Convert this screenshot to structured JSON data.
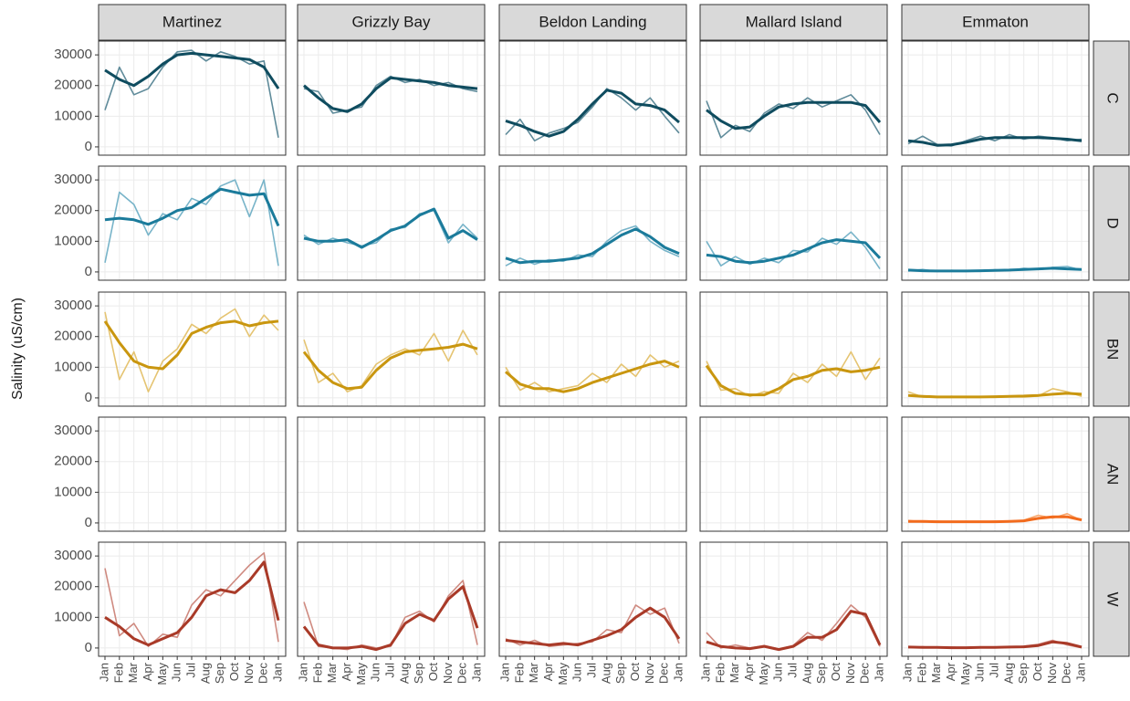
{
  "chart_data": {
    "type": "line",
    "ylabel": "Salinity (uS/cm)",
    "columns": [
      "Martinez",
      "Grizzly Bay",
      "Beldon Landing",
      "Mallard Island",
      "Emmaton"
    ],
    "rows": [
      "C",
      "D",
      "BN",
      "AN",
      "W"
    ],
    "categories": [
      "Jan",
      "Feb",
      "Mar",
      "Apr",
      "May",
      "Jun",
      "Jul",
      "Aug",
      "Sep",
      "Oct",
      "Nov",
      "Dec",
      "Jan"
    ],
    "ylim": [
      -2700,
      34500
    ],
    "yticks": [
      0,
      10000,
      20000,
      30000
    ],
    "grid": true,
    "panels": [
      [
        {
          "series": [
            {
              "color": "#5f8b9a",
              "values": [
                12000,
                26000,
                17000,
                19000,
                26000,
                31000,
                31500,
                28000,
                31000,
                29500,
                27000,
                28000,
                3000
              ]
            },
            {
              "color": "#0f4c5f",
              "values": [
                25000,
                22000,
                20000,
                23000,
                27000,
                30000,
                30500,
                30000,
                29500,
                29000,
                28500,
                26000,
                19000
              ]
            }
          ]
        },
        {
          "series": [
            {
              "color": "#5f8b9a",
              "values": [
                19000,
                18000,
                11000,
                12000,
                13000,
                20000,
                23000,
                21000,
                22000,
                20000,
                21000,
                19000,
                18000
              ]
            },
            {
              "color": "#0f4c5f",
              "values": [
                20000,
                16000,
                12500,
                11500,
                14000,
                19000,
                22500,
                22000,
                21500,
                21000,
                20000,
                19500,
                19000
              ]
            }
          ]
        },
        {
          "series": [
            {
              "color": "#5f8b9a",
              "values": [
                4000,
                9000,
                2000,
                4500,
                6000,
                8000,
                13000,
                19000,
                16000,
                12000,
                16000,
                10000,
                4500
              ]
            },
            {
              "color": "#0f4c5f",
              "values": [
                8500,
                7000,
                5000,
                3500,
                5000,
                9000,
                14000,
                18500,
                17500,
                14000,
                13500,
                12000,
                8000
              ]
            }
          ]
        },
        {
          "series": [
            {
              "color": "#5f8b9a",
              "values": [
                15000,
                3000,
                7000,
                5000,
                11000,
                14000,
                12500,
                16000,
                13000,
                15000,
                17000,
                12000,
                4000
              ]
            },
            {
              "color": "#0f4c5f",
              "values": [
                12000,
                8500,
                6000,
                6500,
                10000,
                13000,
                14000,
                14500,
                14500,
                14500,
                14500,
                13500,
                8000
              ]
            }
          ]
        },
        {
          "series": [
            {
              "color": "#5f8b9a",
              "values": [
                1000,
                3500,
                800,
                300,
                2000,
                3500,
                2000,
                4000,
                2500,
                3500,
                3000,
                2000,
                2500
              ]
            },
            {
              "color": "#0f4c5f",
              "values": [
                2000,
                1500,
                500,
                700,
                1500,
                2500,
                3000,
                3000,
                3000,
                3000,
                2800,
                2500,
                2000
              ]
            }
          ]
        }
      ],
      [
        {
          "series": [
            {
              "color": "#78b4c9",
              "values": [
                3000,
                26000,
                22000,
                12000,
                19000,
                17000,
                24000,
                22000,
                28000,
                30000,
                18000,
                30000,
                2000
              ]
            },
            {
              "color": "#1b7b9b",
              "values": [
                17000,
                17500,
                17000,
                15500,
                17500,
                20000,
                21000,
                24000,
                27000,
                26000,
                25000,
                25500,
                15000
              ]
            }
          ]
        },
        {
          "series": [
            {
              "color": "#78b4c9",
              "values": [
                12000,
                9000,
                11000,
                9500,
                8500,
                9500,
                14000,
                14500,
                19000,
                20000,
                9500,
                15500,
                11000
              ]
            },
            {
              "color": "#1b7b9b",
              "values": [
                11000,
                10000,
                10000,
                10500,
                8000,
                10500,
                13500,
                15000,
                18500,
                20500,
                11000,
                13500,
                10500
              ]
            }
          ]
        },
        {
          "series": [
            {
              "color": "#78b4c9",
              "values": [
                2000,
                4500,
                2500,
                4000,
                3500,
                5500,
                5000,
                10000,
                13500,
                15000,
                10000,
                7000,
                5000
              ]
            },
            {
              "color": "#1b7b9b",
              "values": [
                4500,
                3000,
                3500,
                3500,
                4000,
                4500,
                6000,
                9000,
                12000,
                14000,
                11500,
                8000,
                6000
              ]
            }
          ]
        },
        {
          "series": [
            {
              "color": "#78b4c9",
              "values": [
                10000,
                2000,
                5000,
                2500,
                4500,
                3000,
                7000,
                6500,
                11000,
                9000,
                13000,
                8000,
                1000
              ]
            },
            {
              "color": "#1b7b9b",
              "values": [
                5500,
                5000,
                3500,
                3000,
                3500,
                4500,
                5500,
                7500,
                9500,
                10500,
                10000,
                9500,
                4500
              ]
            }
          ]
        },
        {
          "series": [
            {
              "color": "#78b4c9",
              "values": [
                300,
                800,
                200,
                500,
                300,
                200,
                700,
                400,
                1200,
                800,
                1500,
                1800,
                600
              ]
            },
            {
              "color": "#1b7b9b",
              "values": [
                600,
                400,
                300,
                300,
                300,
                400,
                500,
                600,
                800,
                1000,
                1200,
                1000,
                800
              ]
            }
          ]
        }
      ],
      [
        {
          "series": [
            {
              "color": "#e5c472",
              "values": [
                28000,
                6000,
                15000,
                2000,
                12000,
                16000,
                24000,
                21000,
                26000,
                29000,
                20000,
                27000,
                22000
              ]
            },
            {
              "color": "#c9960f",
              "values": [
                25000,
                18000,
                12000,
                10000,
                9500,
                14000,
                21000,
                23000,
                24500,
                25000,
                23500,
                24500,
                25000
              ]
            }
          ]
        },
        {
          "series": [
            {
              "color": "#e5c472",
              "values": [
                19000,
                5000,
                8000,
                2000,
                4000,
                11000,
                14000,
                16000,
                14000,
                21000,
                12000,
                22000,
                14000
              ]
            },
            {
              "color": "#c9960f",
              "values": [
                15000,
                9000,
                5000,
                3000,
                3500,
                9000,
                13000,
                15000,
                15500,
                16000,
                16500,
                17500,
                16000
              ]
            }
          ]
        },
        {
          "series": [
            {
              "color": "#e5c472",
              "values": [
                10000,
                2500,
                5000,
                2000,
                3000,
                4000,
                8000,
                5000,
                11000,
                7000,
                14000,
                10000,
                12000
              ]
            },
            {
              "color": "#c9960f",
              "values": [
                8500,
                4500,
                3000,
                3000,
                2000,
                3000,
                5000,
                6500,
                8000,
                9500,
                11000,
                12000,
                10000
              ]
            }
          ]
        },
        {
          "series": [
            {
              "color": "#e5c472",
              "values": [
                12000,
                2500,
                3000,
                500,
                2000,
                1500,
                8000,
                5000,
                11000,
                7000,
                15000,
                6000,
                13000
              ]
            },
            {
              "color": "#c9960f",
              "values": [
                10500,
                4000,
                1500,
                1000,
                1000,
                3000,
                6000,
                7000,
                9000,
                9500,
                8500,
                9000,
                10000
              ]
            }
          ]
        },
        {
          "series": [
            {
              "color": "#e5c472",
              "values": [
                2000,
                300,
                200,
                500,
                200,
                300,
                200,
                400,
                300,
                600,
                3000,
                2000,
                500
              ]
            },
            {
              "color": "#c9960f",
              "values": [
                800,
                500,
                300,
                300,
                300,
                300,
                400,
                500,
                600,
                800,
                1200,
                1500,
                1200
              ]
            }
          ]
        }
      ],
      [
        {
          "series": []
        },
        {
          "series": []
        },
        {
          "series": []
        },
        {
          "series": []
        },
        {
          "series": [
            {
              "color": "#f8a86e",
              "values": [
                800,
                300,
                600,
                300,
                500,
                300,
                600,
                400,
                900,
                2500,
                1600,
                3000,
                800
              ]
            },
            {
              "color": "#f26b1d",
              "values": [
                500,
                500,
                400,
                400,
                400,
                400,
                400,
                500,
                700,
                1500,
                2000,
                2000,
                1000
              ]
            }
          ]
        }
      ],
      [
        {
          "series": [
            {
              "color": "#cf8a80",
              "values": [
                26000,
                4000,
                8000,
                500,
                4500,
                3500,
                14000,
                19000,
                17000,
                22000,
                27000,
                31000,
                2000
              ]
            },
            {
              "color": "#a93a28",
              "values": [
                10000,
                7000,
                3000,
                1000,
                3000,
                5000,
                10000,
                17000,
                19000,
                18000,
                22000,
                28000,
                9000
              ]
            }
          ]
        },
        {
          "series": [
            {
              "color": "#cf8a80",
              "values": [
                15000,
                500,
                0,
                -500,
                1000,
                0,
                500,
                10000,
                12000,
                8500,
                17000,
                22000,
                1000
              ]
            },
            {
              "color": "#a93a28",
              "values": [
                7000,
                1000,
                0,
                0,
                500,
                -500,
                1000,
                8000,
                11000,
                9000,
                16000,
                20000,
                6500
              ]
            }
          ]
        },
        {
          "series": [
            {
              "color": "#cf8a80",
              "values": [
                3000,
                1000,
                2500,
                500,
                1000,
                1500,
                2000,
                6000,
                5000,
                14000,
                11000,
                13000,
                1500
              ]
            },
            {
              "color": "#a93a28",
              "values": [
                2500,
                2000,
                1500,
                1000,
                1500,
                1000,
                2500,
                4000,
                6000,
                10000,
                13000,
                10000,
                3000
              ]
            }
          ]
        },
        {
          "series": [
            {
              "color": "#cf8a80",
              "values": [
                5000,
                0,
                1000,
                0,
                800,
                -300,
                800,
                5000,
                2500,
                8000,
                14000,
                10000,
                500
              ]
            },
            {
              "color": "#a93a28",
              "values": [
                2000,
                500,
                0,
                -200,
                500,
                -500,
                500,
                3500,
                3500,
                6000,
                12000,
                11000,
                1000
              ]
            }
          ]
        },
        {
          "series": [
            {
              "color": "#cf8a80",
              "values": [
                100,
                400,
                100,
                300,
                0,
                300,
                100,
                200,
                600,
                1200,
                2500,
                1000,
                100
              ]
            },
            {
              "color": "#a93a28",
              "values": [
                300,
                200,
                200,
                100,
                100,
                200,
                200,
                300,
                400,
                800,
                2000,
                1500,
                300
              ]
            }
          ]
        }
      ]
    ]
  }
}
